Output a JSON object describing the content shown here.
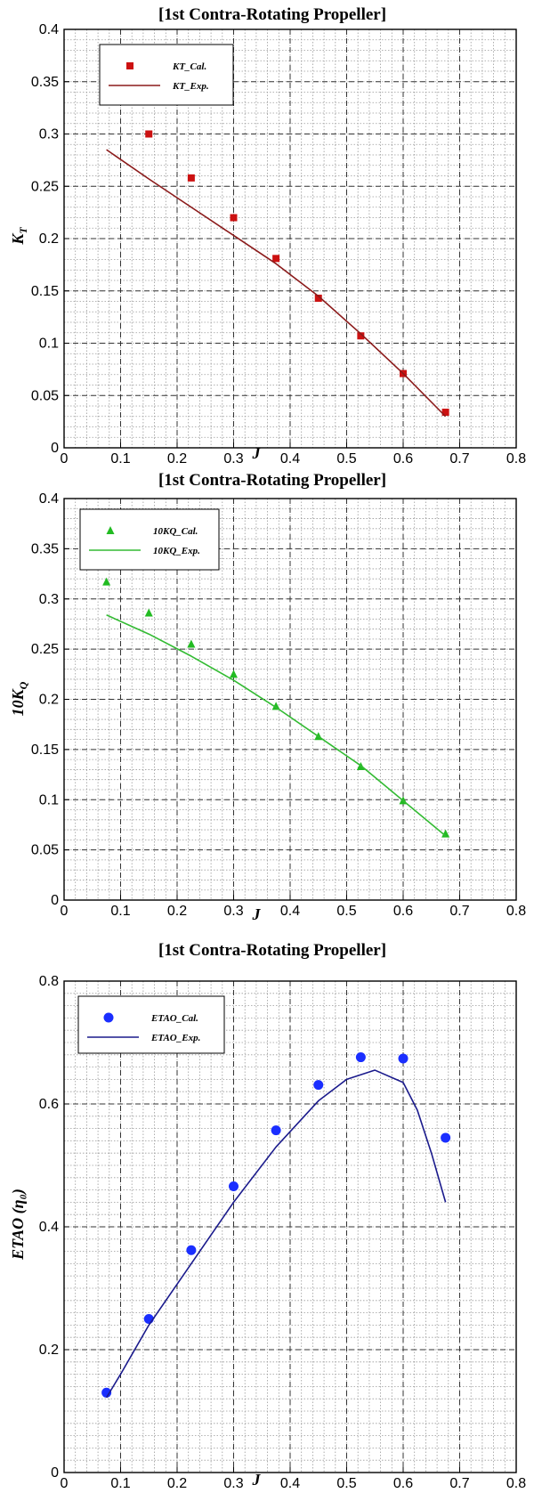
{
  "chart_data": [
    {
      "type": "scatter",
      "title": "[1st Contra-Rotating Propeller]",
      "xlabel": "J",
      "ylabel": "K_T",
      "xlim": [
        0,
        0.8
      ],
      "ylim": [
        0,
        0.4
      ],
      "xticks": [
        "0",
        "0.1",
        "0.2",
        "0.3",
        "0.4",
        "0.5",
        "0.6",
        "0.7",
        "0.8"
      ],
      "yticks": [
        "0",
        "0.05",
        "0.1",
        "0.15",
        "0.2",
        "0.25",
        "0.3",
        "0.35",
        "0.4"
      ],
      "grid": true,
      "legend_position": "top-left",
      "series": [
        {
          "name": "KT_Cal.",
          "kind": "points",
          "marker": "square",
          "color": "#cc1111",
          "x": [
            0.15,
            0.225,
            0.3,
            0.375,
            0.45,
            0.525,
            0.6,
            0.675
          ],
          "y": [
            0.3,
            0.258,
            0.22,
            0.181,
            0.143,
            0.107,
            0.071,
            0.034
          ]
        },
        {
          "name": "KT_Exp.",
          "kind": "line",
          "color": "#8b1a1a",
          "x": [
            0.075,
            0.15,
            0.225,
            0.3,
            0.375,
            0.45,
            0.525,
            0.6,
            0.675
          ],
          "y": [
            0.285,
            0.257,
            0.23,
            0.203,
            0.176,
            0.145,
            0.109,
            0.071,
            0.03
          ]
        }
      ]
    },
    {
      "type": "scatter",
      "title": "[1st Contra-Rotating Propeller]",
      "xlabel": "J",
      "ylabel": "10K_Q",
      "xlim": [
        0,
        0.8
      ],
      "ylim": [
        0,
        0.4
      ],
      "xticks": [
        "0",
        "0.1",
        "0.2",
        "0.3",
        "0.4",
        "0.5",
        "0.6",
        "0.7",
        "0.8"
      ],
      "yticks": [
        "0",
        "0.05",
        "0.1",
        "0.15",
        "0.2",
        "0.25",
        "0.3",
        "0.35",
        "0.4"
      ],
      "grid": true,
      "legend_position": "top-left",
      "series": [
        {
          "name": "10KQ_Cal.",
          "kind": "points",
          "marker": "triangle",
          "color": "#22bb22",
          "x": [
            0.075,
            0.15,
            0.225,
            0.3,
            0.375,
            0.45,
            0.525,
            0.6,
            0.675
          ],
          "y": [
            0.317,
            0.286,
            0.255,
            0.225,
            0.193,
            0.163,
            0.133,
            0.099,
            0.066
          ]
        },
        {
          "name": "10KQ_Exp.",
          "kind": "line",
          "color": "#33bb33",
          "x": [
            0.075,
            0.15,
            0.225,
            0.3,
            0.375,
            0.45,
            0.525,
            0.6,
            0.675
          ],
          "y": [
            0.284,
            0.265,
            0.243,
            0.219,
            0.192,
            0.163,
            0.134,
            0.099,
            0.064
          ]
        }
      ]
    },
    {
      "type": "scatter",
      "title": "[1st Contra-Rotating Propeller]",
      "xlabel": "J",
      "ylabel": "ETAO (η₀)",
      "xlim": [
        0,
        0.8
      ],
      "ylim": [
        0,
        0.8
      ],
      "xticks": [
        "0",
        "0.1",
        "0.2",
        "0.3",
        "0.4",
        "0.5",
        "0.6",
        "0.7",
        "0.8"
      ],
      "yticks": [
        "0",
        "0.2",
        "0.4",
        "0.6",
        "0.8"
      ],
      "grid": true,
      "legend_position": "top-left",
      "series": [
        {
          "name": "ETAO_Cal.",
          "kind": "points",
          "marker": "circle",
          "color": "#1a2eff",
          "x": [
            0.075,
            0.15,
            0.225,
            0.3,
            0.375,
            0.45,
            0.525,
            0.6,
            0.675
          ],
          "y": [
            0.13,
            0.25,
            0.362,
            0.466,
            0.557,
            0.631,
            0.676,
            0.674,
            0.545
          ]
        },
        {
          "name": "ETAO_Exp.",
          "kind": "line",
          "color": "#1a1a8c",
          "x": [
            0.075,
            0.1,
            0.15,
            0.225,
            0.3,
            0.375,
            0.45,
            0.5,
            0.55,
            0.6,
            0.625,
            0.65,
            0.675
          ],
          "y": [
            0.122,
            0.16,
            0.24,
            0.34,
            0.44,
            0.53,
            0.605,
            0.64,
            0.655,
            0.635,
            0.59,
            0.52,
            0.44
          ]
        }
      ]
    }
  ]
}
